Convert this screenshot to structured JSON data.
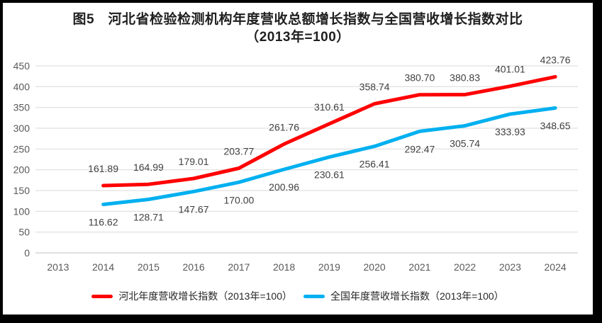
{
  "chart_data": {
    "type": "line",
    "title_lines": [
      "图5　河北省检验检测机构年度营收总额增长指数与全国营收增长指数对比",
      "（2013年=100）"
    ],
    "categories": [
      "2013",
      "2014",
      "2015",
      "2016",
      "2017",
      "2018",
      "2019",
      "2020",
      "2021",
      "2022",
      "2023",
      "2024"
    ],
    "series": [
      {
        "name": "河北年度营收增长指数（2013年=100）",
        "color": "#ff0000",
        "label_side": "above",
        "values": [
          null,
          161.89,
          164.99,
          179.01,
          203.77,
          261.76,
          310.61,
          358.74,
          380.7,
          380.83,
          401.01,
          423.76
        ]
      },
      {
        "name": "全国年度营收增长指数（2013年=100）",
        "color": "#00b0f0",
        "label_side": "below",
        "values": [
          null,
          116.62,
          128.71,
          147.67,
          170.0,
          200.96,
          230.61,
          256.41,
          292.47,
          305.74,
          333.93,
          348.65
        ]
      }
    ],
    "ylim": [
      0,
      450
    ],
    "yticks": [
      0,
      50,
      100,
      150,
      200,
      250,
      300,
      350,
      400,
      450
    ],
    "xlabel": "",
    "ylabel": "",
    "grid": "horizontal-only",
    "legend_position": "bottom",
    "data_labels": true,
    "label_decimals": 2
  },
  "style": {
    "gridline_color": "#d9d9d9",
    "axis_line_color": "#bfbfbf",
    "tick_label_color": "#595959",
    "data_label_color": "#404040",
    "frame_border_color": "#000000",
    "background": "#ffffff"
  }
}
